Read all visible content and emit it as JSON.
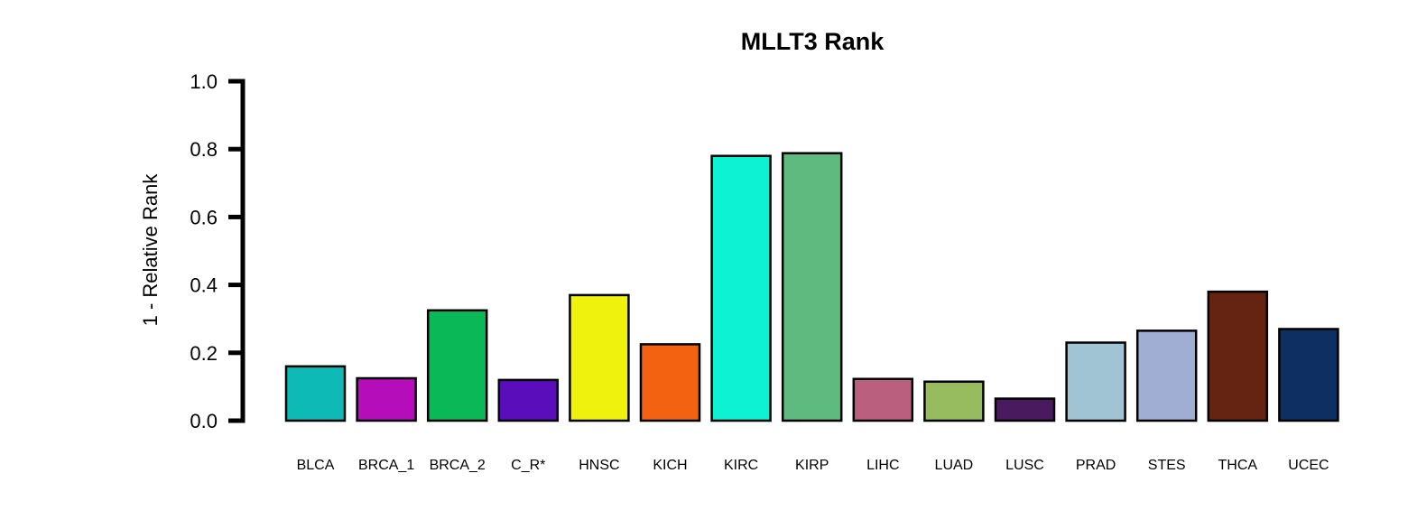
{
  "chart_data": {
    "type": "bar",
    "title": "MLLT3 Rank",
    "xlabel": "",
    "ylabel": "1 - Relative Rank",
    "ylim": [
      0,
      1
    ],
    "yticks": [
      "0.0",
      "0.2",
      "0.4",
      "0.6",
      "0.8",
      "1.0"
    ],
    "grid": false,
    "legend": "none",
    "categories": [
      "BLCA",
      "BRCA_1",
      "BRCA_2",
      "C_R*",
      "HNSC",
      "KICH",
      "KIRC",
      "KIRP",
      "LIHC",
      "LUAD",
      "LUSC",
      "PRAD",
      "STES",
      "THCA",
      "UCEC"
    ],
    "values": [
      0.16,
      0.125,
      0.325,
      0.12,
      0.37,
      0.225,
      0.78,
      0.788,
      0.123,
      0.115,
      0.065,
      0.23,
      0.265,
      0.38,
      0.27
    ],
    "colors": [
      "#0dbab5",
      "#b60dbb",
      "#0ab858",
      "#5a0dba",
      "#eff20d",
      "#f26210",
      "#0df2d3",
      "#5fba80",
      "#bb5f7f",
      "#97bb5f",
      "#4a1a5f",
      "#a0c4d4",
      "#a0aed4",
      "#652412",
      "#0d2f62"
    ]
  }
}
